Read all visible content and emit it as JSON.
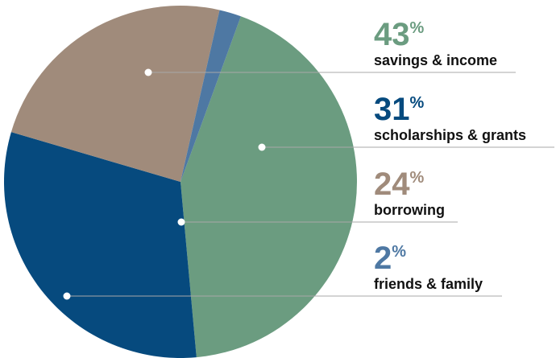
{
  "chart_data": {
    "type": "pie",
    "categories": [
      "savings & income",
      "scholarships & grants",
      "borrowing",
      "friends & family"
    ],
    "values": [
      43,
      31,
      24,
      2
    ],
    "percent_symbol": "%",
    "colors": [
      "#6b9c80",
      "#064a7e",
      "#a08b7b",
      "#4e78a3"
    ],
    "label_colors": [
      "#6b9c80",
      "#064a7e",
      "#a08b7b",
      "#4e78a3"
    ],
    "legend": "right"
  }
}
